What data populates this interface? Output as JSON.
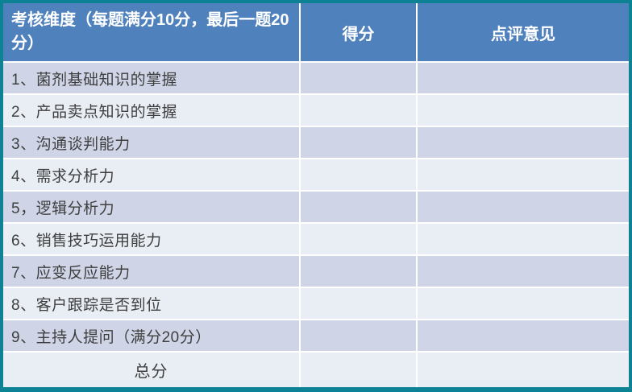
{
  "colors": {
    "frame_border": "#0d8294",
    "header_bg": "#4f81bd",
    "band_dark": "#cfd5e7",
    "band_light": "#e9edf4",
    "header_text": "#ffffff",
    "body_text": "#3f3f3f"
  },
  "table": {
    "header": {
      "dimension": "考核维度（每题满分10分，最后一题20分）",
      "score": "得分",
      "comment": "点评意见"
    },
    "rows": [
      {
        "label": "1、菌剂基础知识的掌握",
        "score": "",
        "comment": ""
      },
      {
        "label": "2、产品卖点知识的掌握",
        "score": "",
        "comment": ""
      },
      {
        "label": "3、沟通谈判能力",
        "score": "",
        "comment": ""
      },
      {
        "label": "4、需求分析力",
        "score": "",
        "comment": ""
      },
      {
        "label": "5，逻辑分析力",
        "score": "",
        "comment": ""
      },
      {
        "label": "6、销售技巧运用能力",
        "score": "",
        "comment": ""
      },
      {
        "label": "7、应变反应能力",
        "score": "",
        "comment": ""
      },
      {
        "label": "8、客户跟踪是否到位",
        "score": "",
        "comment": ""
      },
      {
        "label": "9、主持人提问（满分20分）",
        "score": "",
        "comment": ""
      }
    ],
    "footer": {
      "total_label": "总分",
      "score": "",
      "comment": ""
    }
  }
}
